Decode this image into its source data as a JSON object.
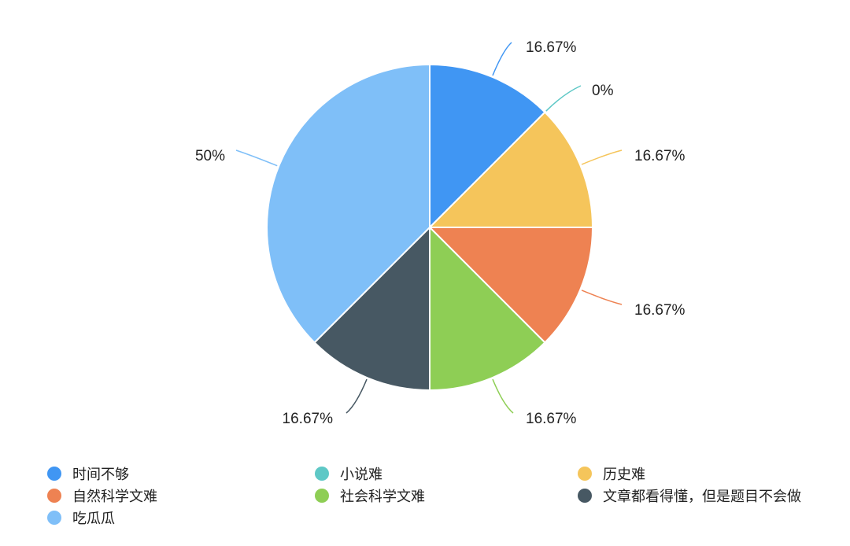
{
  "chart_data": {
    "type": "pie",
    "categories": [
      "时间不够",
      "小说难",
      "历史难",
      "自然科学文难",
      "社会科学文难",
      "文章都看得懂，但是题目不会做",
      "吃瓜瓜"
    ],
    "values": [
      16.67,
      0,
      16.67,
      16.67,
      16.67,
      16.67,
      50
    ],
    "data_labels": [
      "16.67%",
      "0%",
      "16.67%",
      "16.67%",
      "16.67%",
      "16.67%",
      "50%"
    ],
    "colors": [
      "#4096f3",
      "#5ec8c6",
      "#f5c55b",
      "#ee8252",
      "#8ece55",
      "#475863",
      "#7fbff8"
    ],
    "legend_position": "bottom"
  }
}
